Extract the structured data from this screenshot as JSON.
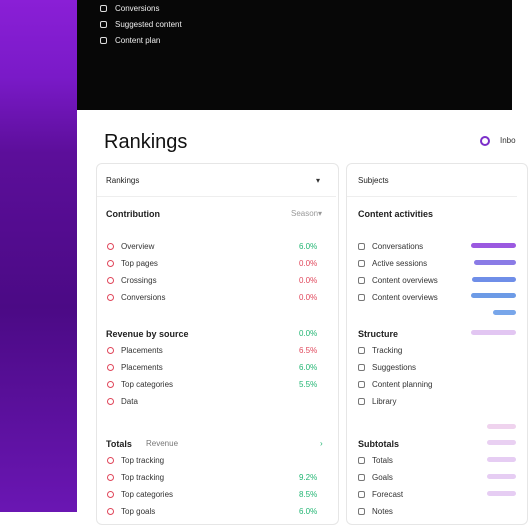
{
  "menu": [
    "Conversions",
    "Suggested content",
    "Content plan"
  ],
  "header": {
    "title": "Rankings",
    "action": "Inbo"
  },
  "left_card": {
    "title": "Rankings",
    "sections": [
      {
        "title": "Contribution",
        "aside": "Season",
        "rows": [
          {
            "label": "Overview",
            "value": "6.0%",
            "color": "#22b573"
          },
          {
            "label": "Top pages",
            "value": "0.0%",
            "color": "#e0475b"
          },
          {
            "label": "Crossings",
            "value": "0.0%",
            "color": "#e0475b"
          },
          {
            "label": "Conversions",
            "value": "0.0%",
            "color": "#e0475b"
          }
        ]
      },
      {
        "title": "Revenue by source",
        "aside": "0.0%",
        "asideColor": "#22b573",
        "rows": [
          {
            "label": "Placements",
            "value": "6.5%",
            "color": "#e0475b"
          },
          {
            "label": "Placements",
            "value": "6.0%",
            "color": "#22b573"
          },
          {
            "label": "Top categories",
            "value": "5.5%",
            "color": "#22b573"
          },
          {
            "label": "Data"
          }
        ]
      },
      {
        "title": "Totals",
        "middle": "Revenue",
        "rows": [
          {
            "label": "Top tracking"
          },
          {
            "label": "Top tracking",
            "value": "9.2%",
            "color": "#22b573"
          },
          {
            "label": "Top categories",
            "value": "8.5%",
            "color": "#22b573"
          },
          {
            "label": "Top goals",
            "value": "6.0%",
            "color": "#22b573"
          }
        ]
      }
    ]
  },
  "right_card": {
    "title": "Subjects",
    "sections": [
      {
        "title": "Content activities",
        "rows": [
          "Conversations",
          "Active sessions",
          "Content overviews",
          "Content overviews"
        ]
      },
      {
        "title": "Structure",
        "rows": [
          "Tracking",
          "Suggestions",
          "Content planning",
          "Library"
        ]
      },
      {
        "title": "Subtotals",
        "rows": [
          "Totals",
          "Goals",
          "Forecast",
          "Notes"
        ]
      }
    ]
  }
}
